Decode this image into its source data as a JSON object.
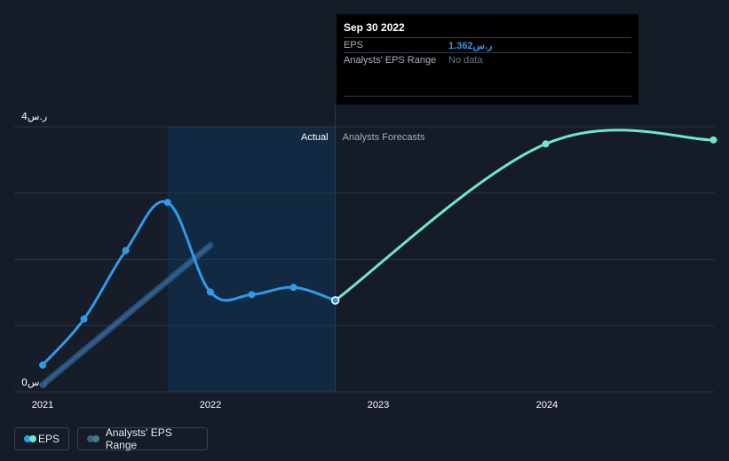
{
  "chart_data": {
    "type": "line",
    "y_axis": {
      "ticks": [
        "ر.س4",
        "ر.س0"
      ],
      "ylim": [
        0,
        4
      ]
    },
    "x_axis": {
      "ticks": [
        "2021",
        "2022",
        "2023",
        "2024"
      ]
    },
    "section_labels": {
      "actual": "Actual",
      "forecast": "Analysts Forecasts"
    },
    "series": [
      {
        "name": "EPS",
        "color": "#2f9ae8",
        "points": [
          {
            "x": "2021-01-01",
            "y": 0.38
          },
          {
            "x": "2021-04-01",
            "y": 1.08
          },
          {
            "x": "2021-07-01",
            "y": 2.12
          },
          {
            "x": "2021-09-30",
            "y": 2.85
          },
          {
            "x": "2022-01-01",
            "y": 1.49
          },
          {
            "x": "2022-04-01",
            "y": 1.45
          },
          {
            "x": "2022-07-01",
            "y": 1.56
          },
          {
            "x": "2022-09-30",
            "y": 1.362
          }
        ]
      },
      {
        "name": "EPS forecast",
        "color": "#6ee6d0",
        "points": [
          {
            "x": "2022-09-30",
            "y": 1.362
          },
          {
            "x": "2024-01-01",
            "y": 3.74
          },
          {
            "x": "2024-12-31",
            "y": 3.8
          }
        ]
      },
      {
        "name": "Analysts' EPS Range",
        "color": "#2e5a86",
        "points": [
          {
            "x": "2021-01-01",
            "y": 0.08
          },
          {
            "x": "2022-01-01",
            "y": 2.2
          }
        ]
      }
    ],
    "grid": true,
    "legend_position": "bottom-left"
  },
  "tooltip": {
    "date": "Sep 30 2022",
    "eps_label": "EPS",
    "eps_value": "ر.س1.362",
    "range_label": "Analysts' EPS Range",
    "range_value": "No data"
  },
  "legend": {
    "eps": "EPS",
    "range": "Analysts' EPS Range"
  }
}
